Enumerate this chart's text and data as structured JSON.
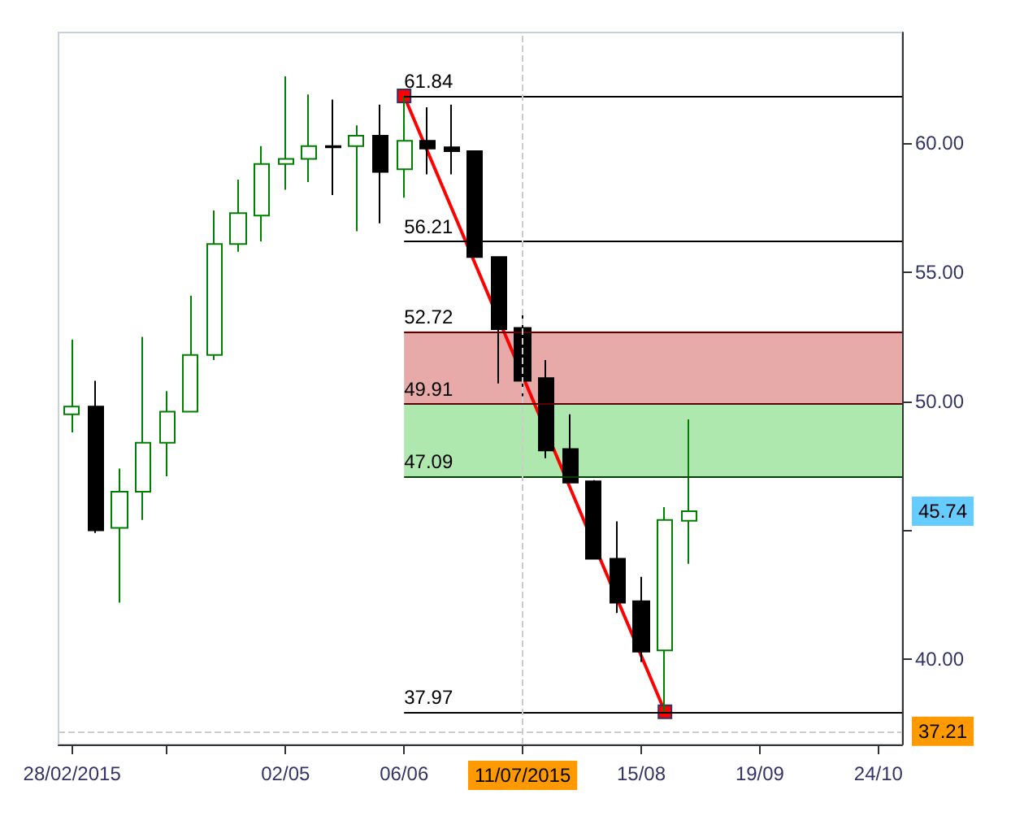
{
  "chart_data": {
    "type": "candlestick",
    "x": [
      "2015-02-28",
      "2015-03-07",
      "2015-03-14",
      "2015-03-21",
      "2015-03-28",
      "2015-04-04",
      "2015-04-11",
      "2015-04-18",
      "2015-04-25",
      "2015-05-02",
      "2015-05-09",
      "2015-05-16",
      "2015-05-23",
      "2015-05-30",
      "2015-06-06",
      "2015-06-13",
      "2015-06-20",
      "2015-06-27",
      "2015-07-04",
      "2015-07-11",
      "2015-07-18",
      "2015-07-25",
      "2015-08-01",
      "2015-08-08",
      "2015-08-15",
      "2015-08-22",
      "2015-08-29"
    ],
    "ohlc": [
      [
        49.5,
        52.4,
        48.8,
        49.8
      ],
      [
        49.8,
        50.8,
        44.9,
        45.0
      ],
      [
        45.1,
        47.4,
        42.2,
        46.5
      ],
      [
        46.5,
        52.5,
        45.4,
        48.4
      ],
      [
        48.4,
        50.4,
        47.1,
        49.6
      ],
      [
        49.6,
        54.1,
        49.6,
        51.8
      ],
      [
        51.8,
        57.4,
        51.6,
        56.1
      ],
      [
        56.1,
        58.6,
        55.8,
        57.3
      ],
      [
        57.2,
        59.9,
        56.2,
        59.2
      ],
      [
        59.2,
        62.6,
        58.2,
        59.4
      ],
      [
        59.4,
        61.9,
        58.5,
        59.9
      ],
      [
        59.9,
        61.7,
        58.0,
        59.85
      ],
      [
        59.9,
        60.7,
        56.6,
        60.3
      ],
      [
        60.3,
        61.5,
        56.9,
        58.9
      ],
      [
        59.0,
        61.84,
        57.9,
        60.1
      ],
      [
        60.1,
        61.4,
        58.8,
        59.8
      ],
      [
        59.85,
        61.5,
        58.8,
        59.7
      ],
      [
        59.7,
        59.7,
        55.6,
        55.6
      ],
      [
        55.6,
        55.6,
        50.7,
        52.8
      ],
      [
        52.85,
        53.5,
        50.2,
        50.8
      ],
      [
        50.9,
        51.6,
        47.8,
        48.1
      ],
      [
        48.15,
        49.5,
        46.85,
        46.85
      ],
      [
        46.9,
        46.95,
        43.9,
        43.9
      ],
      [
        43.9,
        45.35,
        41.8,
        42.2
      ],
      [
        42.25,
        43.2,
        39.9,
        40.3
      ],
      [
        40.35,
        45.9,
        37.97,
        45.4
      ],
      [
        45.37,
        49.3,
        43.7,
        45.74
      ]
    ],
    "colors": [
      "#008000",
      "#000000",
      "#008000",
      "#008000",
      "#008000",
      "#008000",
      "#008000",
      "#008000",
      "#008000",
      "#008000",
      "#008000",
      "#000000",
      "#008000",
      "#000000",
      "#008000",
      "#000000",
      "#000000",
      "#000000",
      "#000000",
      "#000000",
      "#000000",
      "#000000",
      "#000000",
      "#000000",
      "#000000",
      "#008000",
      "#008000"
    ],
    "series": [
      {
        "type": "line",
        "x": [
          "2015-06-06",
          "2015-08-22"
        ],
        "values": [
          61.84,
          37.97
        ],
        "color": "#ff0000",
        "marker": "square"
      }
    ],
    "bands": [
      {
        "axis": "y",
        "from": 49.91,
        "to": 52.72,
        "color": "#e8a9a9"
      },
      {
        "axis": "y",
        "from": 47.09,
        "to": 49.91,
        "color": "#aee8ae"
      }
    ],
    "ref_lines": [
      {
        "axis": "y",
        "value": 61.84,
        "label": "61.84",
        "color": "#000000"
      },
      {
        "axis": "y",
        "value": 56.21,
        "label": "56.21",
        "color": "#000000"
      },
      {
        "axis": "y",
        "value": 52.72,
        "label": "52.72",
        "color": "#5a0000"
      },
      {
        "axis": "y",
        "value": 49.91,
        "label": "49.91",
        "color": "#5a0000"
      },
      {
        "axis": "y",
        "value": 47.09,
        "label": "47.09",
        "color": "#004000"
      },
      {
        "axis": "y",
        "value": 37.97,
        "label": "37.97",
        "color": "#000000"
      },
      {
        "axis": "y",
        "value": 37.21,
        "label": "37.21",
        "color": "#cccccc",
        "line_style": "dashed"
      },
      {
        "axis": "x",
        "value": "2015-07-11",
        "label": "11/07/2015",
        "color": "#cccccc",
        "line_style": "dashed"
      }
    ],
    "annotations": [
      "45.74"
    ],
    "xlim": [
      "2015-02-24",
      "2015-10-31"
    ],
    "xticks": [
      {
        "value": "2015-02-28",
        "label": "28/02/2015"
      },
      {
        "value": "2015-03-28",
        "label": null
      },
      {
        "value": "2015-05-02",
        "label": "02/05"
      },
      {
        "value": "2015-06-06",
        "label": "06/06"
      },
      {
        "value": "2015-07-11",
        "label": null
      },
      {
        "value": "2015-08-15",
        "label": "15/08"
      },
      {
        "value": "2015-09-19",
        "label": "19/09"
      },
      {
        "value": "2015-10-24",
        "label": "24/10"
      }
    ],
    "ylim": [
      36.7,
      64.3
    ],
    "yticks": [
      {
        "value": 40,
        "label": "40.00"
      },
      {
        "value": 45,
        "label": null
      },
      {
        "value": 50,
        "label": "50.00"
      },
      {
        "value": 55,
        "label": "55.00"
      },
      {
        "value": 60,
        "label": "60.00"
      }
    ],
    "grid": false
  }
}
